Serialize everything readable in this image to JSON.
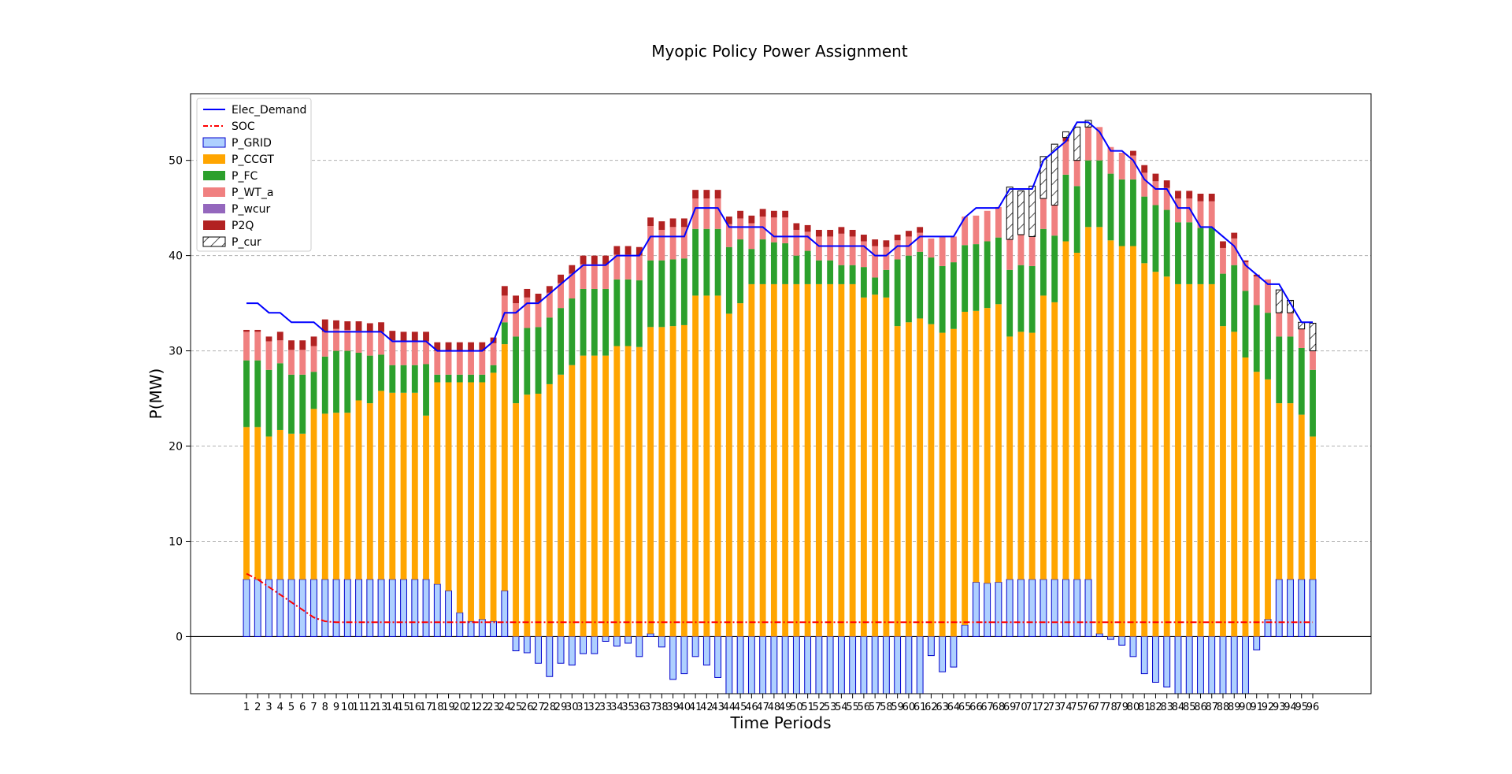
{
  "chart_data": {
    "type": "bar",
    "title": "Myopic Policy Power Assignment",
    "xlabel": "Time Periods",
    "ylabel": "P(MW)",
    "ylim": [
      -6,
      57
    ],
    "yticks": [
      0,
      10,
      20,
      30,
      40,
      50
    ],
    "grid": "horizontal dashed",
    "legend_position": "top-left",
    "categories": [
      "1",
      "2",
      "3",
      "4",
      "5",
      "6",
      "7",
      "8",
      "9",
      "10",
      "11",
      "12",
      "13",
      "14",
      "15",
      "16",
      "17",
      "18",
      "19",
      "20",
      "21",
      "22",
      "23",
      "24",
      "25",
      "26",
      "27",
      "28",
      "29",
      "30",
      "31",
      "32",
      "33",
      "34",
      "35",
      "36",
      "37",
      "38",
      "39",
      "40",
      "41",
      "42",
      "43",
      "44",
      "45",
      "46",
      "47",
      "48",
      "49",
      "50",
      "51",
      "52",
      "53",
      "54",
      "55",
      "56",
      "57",
      "58",
      "59",
      "60",
      "61",
      "62",
      "63",
      "64",
      "65",
      "66",
      "67",
      "68",
      "69",
      "70",
      "71",
      "72",
      "73",
      "74",
      "75",
      "76",
      "77",
      "78",
      "79",
      "80",
      "81",
      "82",
      "83",
      "84",
      "85",
      "86",
      "87",
      "88",
      "89",
      "90",
      "91",
      "92",
      "93",
      "94",
      "95",
      "96"
    ],
    "series": [
      {
        "name": "Elec_Demand",
        "kind": "line",
        "color": "#0000ff",
        "values": [
          35,
          35,
          34,
          34,
          33,
          33,
          33,
          32,
          32,
          32,
          32,
          32,
          32,
          31,
          31,
          31,
          31,
          30,
          30,
          30,
          30,
          30,
          31,
          34,
          34,
          35,
          35,
          36,
          37,
          38,
          39,
          39,
          39,
          40,
          40,
          40,
          42,
          42,
          42,
          42,
          45,
          45,
          45,
          43,
          43,
          43,
          43,
          42,
          42,
          42,
          42,
          41,
          41,
          41,
          41,
          41,
          40,
          40,
          41,
          41,
          42,
          42,
          42,
          42,
          44,
          45,
          45,
          45,
          47,
          47,
          47,
          50,
          51,
          52,
          54,
          54,
          53,
          51,
          51,
          50,
          48,
          47,
          47,
          45,
          45,
          43,
          43,
          42,
          41,
          39,
          38,
          37,
          37,
          35,
          33,
          33
        ]
      },
      {
        "name": "SOC",
        "kind": "line",
        "color": "#ff0000",
        "values": [
          6.6,
          6.0,
          5.2,
          4.4,
          3.6,
          2.8,
          2.0,
          1.6,
          1.5,
          1.5,
          1.5,
          1.5,
          1.5,
          1.5,
          1.5,
          1.5,
          1.5,
          1.5,
          1.5,
          1.5,
          1.5,
          1.5,
          1.5,
          1.5,
          1.5,
          1.5,
          1.5,
          1.5,
          1.5,
          1.5,
          1.5,
          1.5,
          1.5,
          1.5,
          1.5,
          1.5,
          1.5,
          1.5,
          1.5,
          1.5,
          1.5,
          1.5,
          1.5,
          1.5,
          1.5,
          1.5,
          1.5,
          1.5,
          1.5,
          1.5,
          1.5,
          1.5,
          1.5,
          1.5,
          1.5,
          1.5,
          1.5,
          1.5,
          1.5,
          1.5,
          1.5,
          1.5,
          1.5,
          1.5,
          1.5,
          1.5,
          1.5,
          1.5,
          1.5,
          1.5,
          1.5,
          1.5,
          1.5,
          1.5,
          1.5,
          1.5,
          1.5,
          1.5,
          1.5,
          1.5,
          1.5,
          1.5,
          1.5,
          1.5,
          1.5,
          1.5,
          1.5,
          1.5,
          1.5,
          1.5,
          1.5,
          1.5,
          1.5,
          1.5,
          1.5,
          1.5
        ]
      },
      {
        "name": "P_GRID",
        "kind": "bar",
        "color": "#aed0ff",
        "edge": "#0000cc",
        "values": [
          6,
          6,
          6,
          6,
          6,
          6,
          6,
          6,
          6,
          6,
          6,
          6,
          6,
          6,
          6,
          6,
          6,
          5.5,
          4.8,
          2.5,
          1.6,
          1.8,
          1.6,
          4.8,
          -1.5,
          -1.7,
          -2.8,
          -4.2,
          -2.8,
          -3,
          -1.8,
          -1.8,
          -0.5,
          -1,
          -0.7,
          -2.1,
          0.3,
          -1.1,
          -4.5,
          -3.9,
          -2.1,
          -3,
          -4.3,
          -6,
          -6,
          -6,
          -6,
          -6,
          -6,
          -6,
          -6,
          -6,
          -6,
          -6,
          -6,
          -6,
          -6,
          -6,
          -6,
          -6,
          -6,
          -2,
          -3.7,
          -3.2,
          1.2,
          5.7,
          5.6,
          5.7,
          6,
          6,
          6,
          6,
          6,
          6,
          6,
          6,
          0.3,
          -0.3,
          -0.9,
          -2.1,
          -3.9,
          -4.8,
          -5.3,
          -6,
          -6,
          -6,
          -6,
          -6,
          -6,
          -6,
          -1.4,
          1.8,
          6,
          6,
          6,
          6
        ]
      },
      {
        "name": "P_CCGT",
        "kind": "bar",
        "color": "#ffa500",
        "values": [
          16,
          16,
          15,
          15.7,
          15.3,
          15.3,
          17.9,
          17.4,
          17.5,
          17.5,
          18.8,
          18.5,
          19.8,
          19.6,
          19.6,
          19.6,
          17.2,
          21.2,
          21.9,
          24.2,
          25.1,
          24.9,
          26.1,
          25.9,
          24.5,
          25.4,
          25.5,
          26.5,
          27.5,
          28.5,
          29.5,
          29.5,
          29.5,
          30.5,
          30.5,
          30.4,
          32.2,
          32.5,
          32.6,
          32.7,
          35.8,
          35.8,
          35.8,
          33.9,
          35,
          37,
          37,
          37,
          37,
          37,
          37,
          37,
          37,
          37,
          37,
          35.6,
          35.9,
          35.6,
          32.6,
          33,
          33.4,
          32.8,
          31.9,
          32.3,
          32.9,
          28.5,
          28.9,
          29.2,
          25.5,
          26,
          25.9,
          29.8,
          29.1,
          35.5,
          34.3,
          37,
          42.7,
          41.6,
          41,
          41,
          39.2,
          38.3,
          37.8,
          37,
          37,
          37,
          37,
          32.6,
          32,
          29.3,
          27.8,
          25.2,
          18.5,
          18.5,
          17.3,
          15
        ]
      },
      {
        "name": "P_FC",
        "kind": "bar",
        "color": "#2ca02c",
        "values": [
          7,
          7,
          7,
          7,
          6.2,
          6.2,
          3.9,
          6,
          6.5,
          6.5,
          5,
          5,
          3.8,
          2.9,
          2.9,
          2.9,
          5.4,
          0.8,
          0.8,
          0.8,
          0.8,
          0.8,
          0.8,
          2.3,
          7,
          7,
          7,
          7,
          7,
          7,
          7,
          7,
          7,
          7,
          7,
          7,
          7,
          7,
          7,
          7,
          7,
          7,
          7,
          7,
          6.7,
          3.7,
          4.7,
          4.4,
          4.3,
          3,
          3.5,
          2.5,
          2.5,
          2,
          2,
          3.2,
          1.8,
          2.9,
          7,
          7,
          7,
          7,
          7,
          7,
          7,
          7,
          7,
          7,
          7,
          7,
          7,
          7,
          7,
          7,
          7,
          7,
          7,
          7,
          7,
          7,
          7,
          7,
          7,
          6.5,
          6.5,
          5.9,
          5.9,
          5.5,
          7,
          7,
          7,
          7,
          7,
          7,
          7,
          7
        ]
      },
      {
        "name": "P_WT_a",
        "kind": "bar",
        "color": "#f08080",
        "values": [
          3,
          3,
          3,
          2.4,
          2.6,
          2.6,
          2.7,
          2.6,
          2.3,
          2.2,
          2.3,
          2.5,
          2.4,
          2.6,
          2.5,
          2.5,
          2.4,
          2.5,
          2.5,
          2.5,
          2.5,
          2.5,
          2.3,
          2.8,
          3.5,
          3.2,
          2.6,
          2.6,
          2.6,
          2.6,
          2.6,
          2.6,
          2.6,
          2.6,
          2.6,
          2.6,
          3.6,
          3.2,
          3.4,
          3.3,
          3.2,
          3.2,
          3.2,
          2.4,
          2.2,
          2.7,
          2.4,
          2.6,
          2.7,
          2.7,
          2,
          2.5,
          2.5,
          3.3,
          3,
          2.7,
          3.3,
          2.4,
          2,
          2,
          2,
          2,
          3.1,
          2.7,
          3,
          3,
          3.2,
          3.2,
          3.2,
          3.2,
          3.1,
          3.2,
          3.2,
          3.5,
          2.7,
          3.5,
          3.5,
          2.8,
          2.8,
          2.5,
          2.5,
          2.5,
          2.3,
          2.5,
          2.5,
          2.8,
          2.8,
          2.7,
          2.8,
          3,
          3,
          3.5,
          2.5,
          2.5,
          2,
          2
        ]
      },
      {
        "name": "P_wcur",
        "kind": "bar",
        "color": "#9467bd",
        "values": [
          0,
          0,
          0,
          0,
          0,
          0,
          0,
          0,
          0,
          0,
          0,
          0,
          0,
          0,
          0,
          0,
          0,
          0,
          0,
          0,
          0,
          0,
          0,
          0,
          0,
          0,
          0,
          0,
          0,
          0,
          0,
          0,
          0,
          0,
          0,
          0,
          0,
          0,
          0,
          0,
          0,
          0,
          0,
          0,
          0,
          0,
          0,
          0,
          0,
          0,
          0,
          0,
          0,
          0,
          0,
          0,
          0,
          0,
          0,
          0,
          0,
          0,
          0,
          0,
          0,
          0,
          0,
          0,
          0,
          0,
          0,
          0,
          0,
          0,
          0,
          0,
          0,
          0,
          0,
          0,
          0,
          0,
          0,
          0,
          0,
          0,
          0,
          0,
          0,
          0,
          0,
          0,
          0,
          0,
          0,
          0
        ]
      },
      {
        "name": "P2Q",
        "kind": "bar",
        "color": "#b22222",
        "values": [
          0.2,
          0.2,
          0.5,
          0.9,
          1,
          1,
          1,
          1.3,
          0.9,
          0.9,
          1,
          0.9,
          1,
          1,
          1,
          1,
          1,
          0.9,
          0.9,
          0.9,
          0.9,
          0.9,
          0.6,
          1,
          0.8,
          0.9,
          0.9,
          0.7,
          0.9,
          0.9,
          0.9,
          0.9,
          0.9,
          0.9,
          0.9,
          0.9,
          0.9,
          0.9,
          0.9,
          0.9,
          0.9,
          0.9,
          0.9,
          0.8,
          0.8,
          0.8,
          0.8,
          0.7,
          0.7,
          0.7,
          0.7,
          0.7,
          0.7,
          0.7,
          0.7,
          0.7,
          0.7,
          0.7,
          0.6,
          0.6,
          0.6,
          0,
          0,
          0,
          0,
          0,
          0,
          0,
          0,
          0,
          0,
          0,
          0,
          0.4,
          0,
          0,
          0,
          0,
          0,
          0.5,
          0.8,
          0.8,
          0.8,
          0.8,
          0.8,
          0.8,
          0.8,
          0.7,
          0.6,
          0.2,
          0.2,
          0,
          0,
          0,
          0,
          0
        ]
      },
      {
        "name": "P_cur",
        "kind": "bar",
        "color": "#ffffff",
        "hatch": true,
        "values": [
          0,
          0,
          0,
          0,
          0,
          0,
          0,
          0,
          0,
          0,
          0,
          0,
          0,
          0,
          0,
          0,
          0,
          0,
          0,
          0,
          0,
          0,
          0,
          0,
          0,
          0,
          0,
          0,
          0,
          0,
          0,
          0,
          0,
          0,
          0,
          0,
          0,
          0,
          0,
          0,
          0,
          0,
          0,
          0,
          0,
          0,
          0,
          0,
          0,
          0,
          0,
          0,
          0,
          0,
          0,
          0,
          0,
          0,
          0,
          0,
          0,
          0,
          0,
          0,
          0,
          0,
          0,
          0,
          5.5,
          4.6,
          5.3,
          4.4,
          6.4,
          0.6,
          3.5,
          0.7,
          0,
          0,
          0,
          0,
          0,
          0,
          0,
          0,
          0,
          0,
          0,
          0,
          0,
          0,
          0,
          0,
          2.4,
          1.3,
          0.7,
          2.9
        ]
      }
    ]
  }
}
